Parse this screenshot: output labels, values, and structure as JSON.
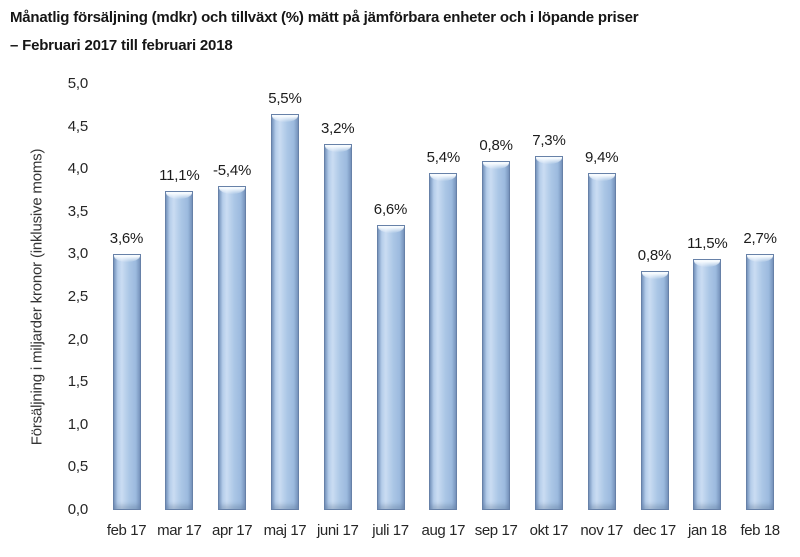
{
  "title": {
    "line1": "Månatlig försäljning (mdkr) och tillväxt (%) mätt på jämförbara enheter och i löpande priser",
    "line2": "– Februari 2017 till februari 2018"
  },
  "chart_data": {
    "type": "bar",
    "categories": [
      "feb 17",
      "mar 17",
      "apr 17",
      "maj 17",
      "juni 17",
      "juli 17",
      "aug 17",
      "sep 17",
      "okt 17",
      "nov 17",
      "dec 17",
      "jan 18",
      "feb 18"
    ],
    "values": [
      3.0,
      3.75,
      3.8,
      4.65,
      4.3,
      3.35,
      3.95,
      4.1,
      4.15,
      3.95,
      2.8,
      2.95,
      3.0
    ],
    "data_labels": [
      "3,6%",
      "11,1%",
      "-5,4%",
      "5,5%",
      "3,2%",
      "6,6%",
      "5,4%",
      "0,8%",
      "7,3%",
      "9,4%",
      "0,8%",
      "11,5%",
      "2,7%"
    ],
    "ylabel": "Försäljning i miljarder kronor (inklusive moms)",
    "xlabel": "",
    "ylim": [
      0,
      5
    ],
    "ytick_step": 0.5,
    "ytick_labels": [
      "0,0",
      "0,5",
      "1,0",
      "1,5",
      "2,0",
      "2,5",
      "3,0",
      "3,5",
      "4,0",
      "4,5",
      "5,0"
    ],
    "grid": false,
    "legend": false,
    "bar_color": "#a9c6e5",
    "bar_border_color": "#6781a8",
    "background_color": "#ffffff"
  }
}
